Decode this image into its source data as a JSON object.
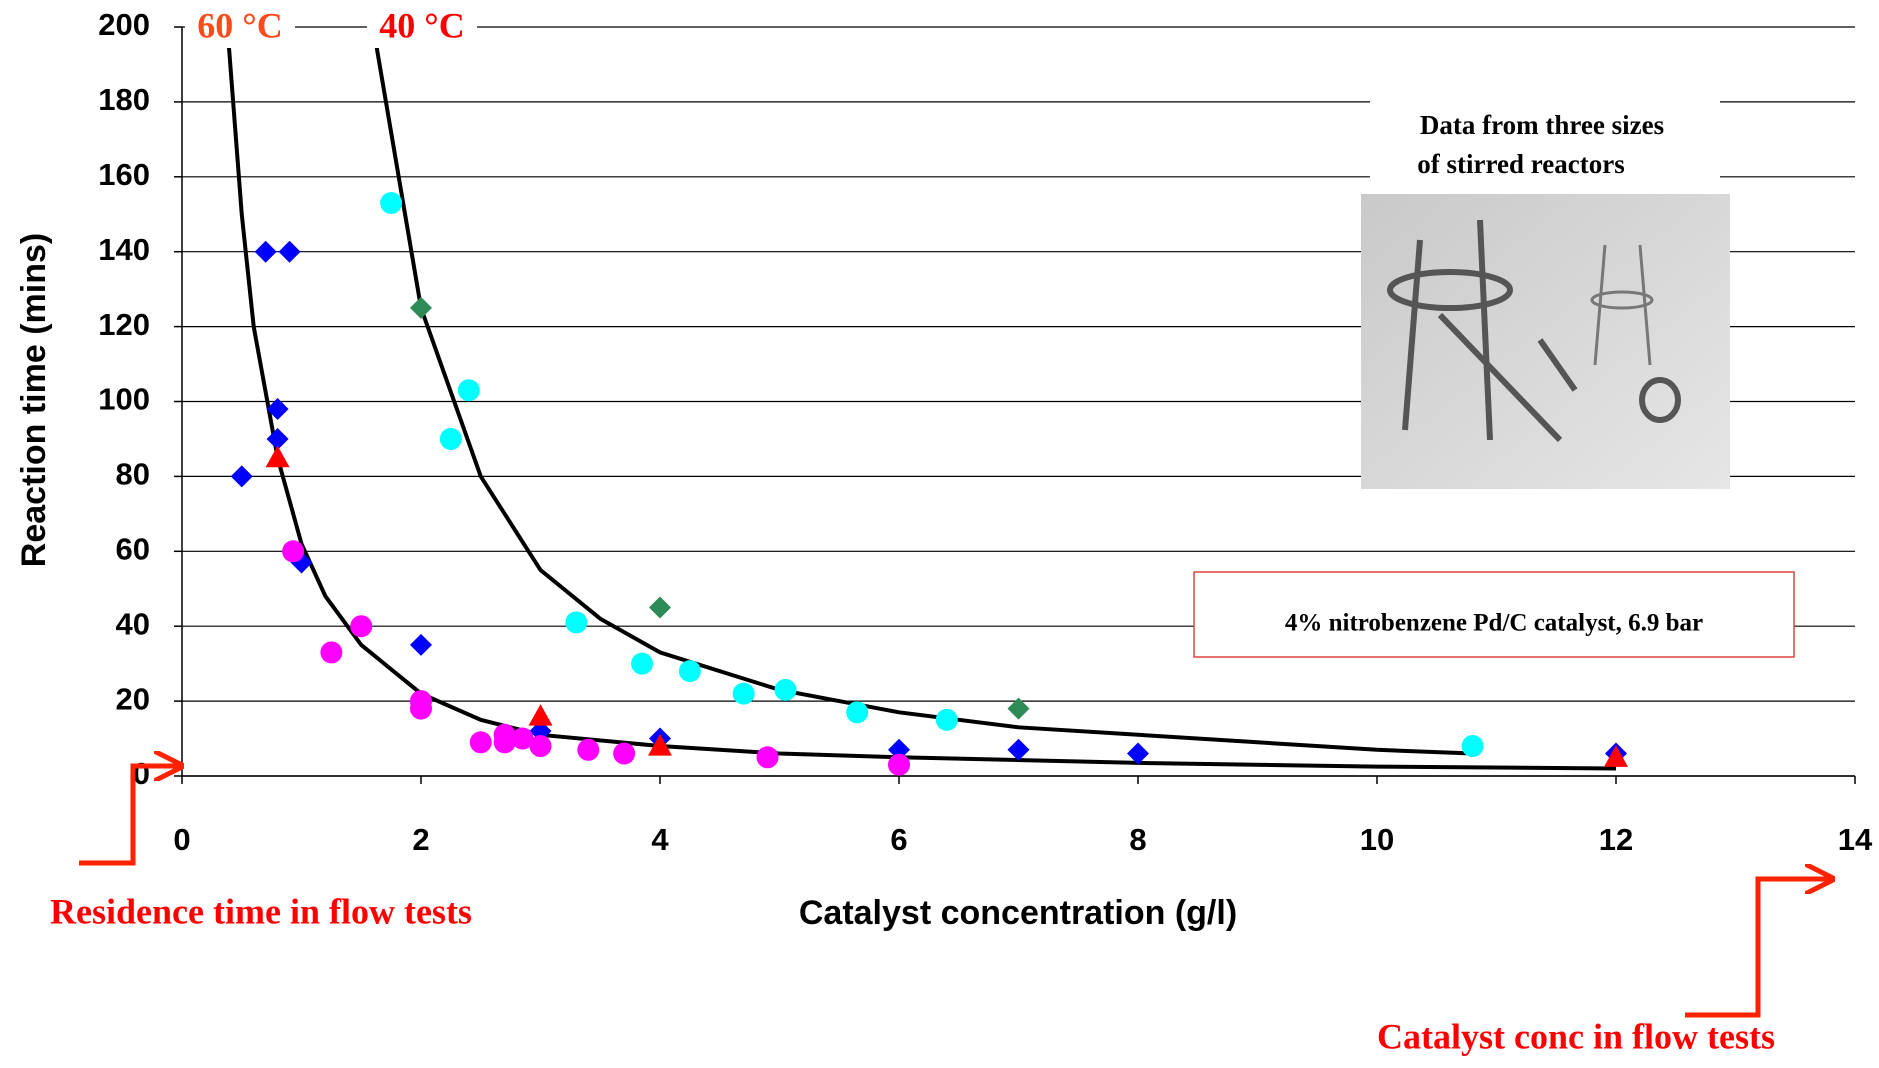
{
  "chart_data": {
    "type": "scatter",
    "x_label": "Catalyst concentration (g/l)",
    "y_label": "Reaction time (mins)",
    "xlim": [
      0,
      14
    ],
    "xticks": [
      0,
      2,
      4,
      6,
      8,
      10,
      12,
      14
    ],
    "ylim": [
      0,
      200
    ],
    "yticks": [
      0,
      20,
      40,
      60,
      80,
      100,
      120,
      140,
      160,
      180,
      200
    ],
    "grid": true,
    "series": [
      {
        "marker": "line",
        "name": "60 °C",
        "label_color": "#ff4a1c",
        "color": "#000000",
        "x": [
          0.38,
          0.5,
          0.6,
          0.8,
          1,
          1.2,
          1.5,
          2,
          2.5,
          3,
          4,
          5,
          6,
          8,
          10,
          12
        ],
        "values": [
          200,
          150,
          120,
          85,
          62,
          48,
          35,
          22,
          15,
          11,
          8,
          6,
          5,
          3.5,
          2.5,
          2
        ]
      },
      {
        "marker": "line",
        "name": "40 °C",
        "label_color": "#ff0000",
        "color": "#000000",
        "x": [
          1.6,
          2,
          2.5,
          3,
          3.5,
          4,
          5,
          6,
          7,
          8,
          9,
          10,
          10.8
        ],
        "values": [
          200,
          125,
          80,
          55,
          42,
          33,
          23,
          17,
          13,
          11,
          9,
          7,
          6
        ]
      },
      {
        "marker": "diamond",
        "color": "#0000ff",
        "x": [
          0.5,
          0.7,
          0.9,
          0.8,
          0.8,
          1.0,
          2,
          3,
          4,
          6,
          7,
          8,
          12
        ],
        "values": [
          80,
          140,
          140,
          98,
          90,
          57,
          35,
          12,
          10,
          7,
          7,
          6,
          6
        ]
      },
      {
        "marker": "diamond",
        "color": "#2e8b57",
        "x": [
          2,
          4,
          7
        ],
        "values": [
          125,
          45,
          18
        ]
      },
      {
        "marker": "circle",
        "color": "#00ffff",
        "x": [
          1.75,
          2.25,
          2.4,
          3.3,
          3.85,
          4.25,
          4.7,
          5.05,
          5.65,
          6.4,
          10.8
        ],
        "values": [
          153,
          90,
          103,
          41,
          30,
          28,
          22,
          23,
          17,
          15,
          8
        ]
      },
      {
        "marker": "circle",
        "color": "#ff00ff",
        "x": [
          0.93,
          1.25,
          1.5,
          2,
          2,
          2.5,
          2.7,
          2.7,
          2.85,
          3,
          3.4,
          3.7,
          4.9,
          6
        ],
        "values": [
          60,
          33,
          40,
          20,
          18,
          9,
          11,
          9,
          10,
          8,
          7,
          6,
          5,
          3
        ]
      },
      {
        "marker": "triangle",
        "color": "#ff0000",
        "x": [
          0.8,
          3,
          4,
          12
        ],
        "values": [
          85,
          16,
          8,
          5
        ]
      }
    ],
    "annotations": [
      {
        "text": "Data from three sizes"
      },
      {
        "text": "of stirred reactors"
      },
      {
        "text": "4% nitrobenzene Pd/C catalyst, 6.9 bar"
      },
      {
        "text": "Residence time in flow tests",
        "color": "#ff0000"
      },
      {
        "text": "Catalyst conc in flow tests",
        "color": "#ff0000"
      }
    ]
  }
}
